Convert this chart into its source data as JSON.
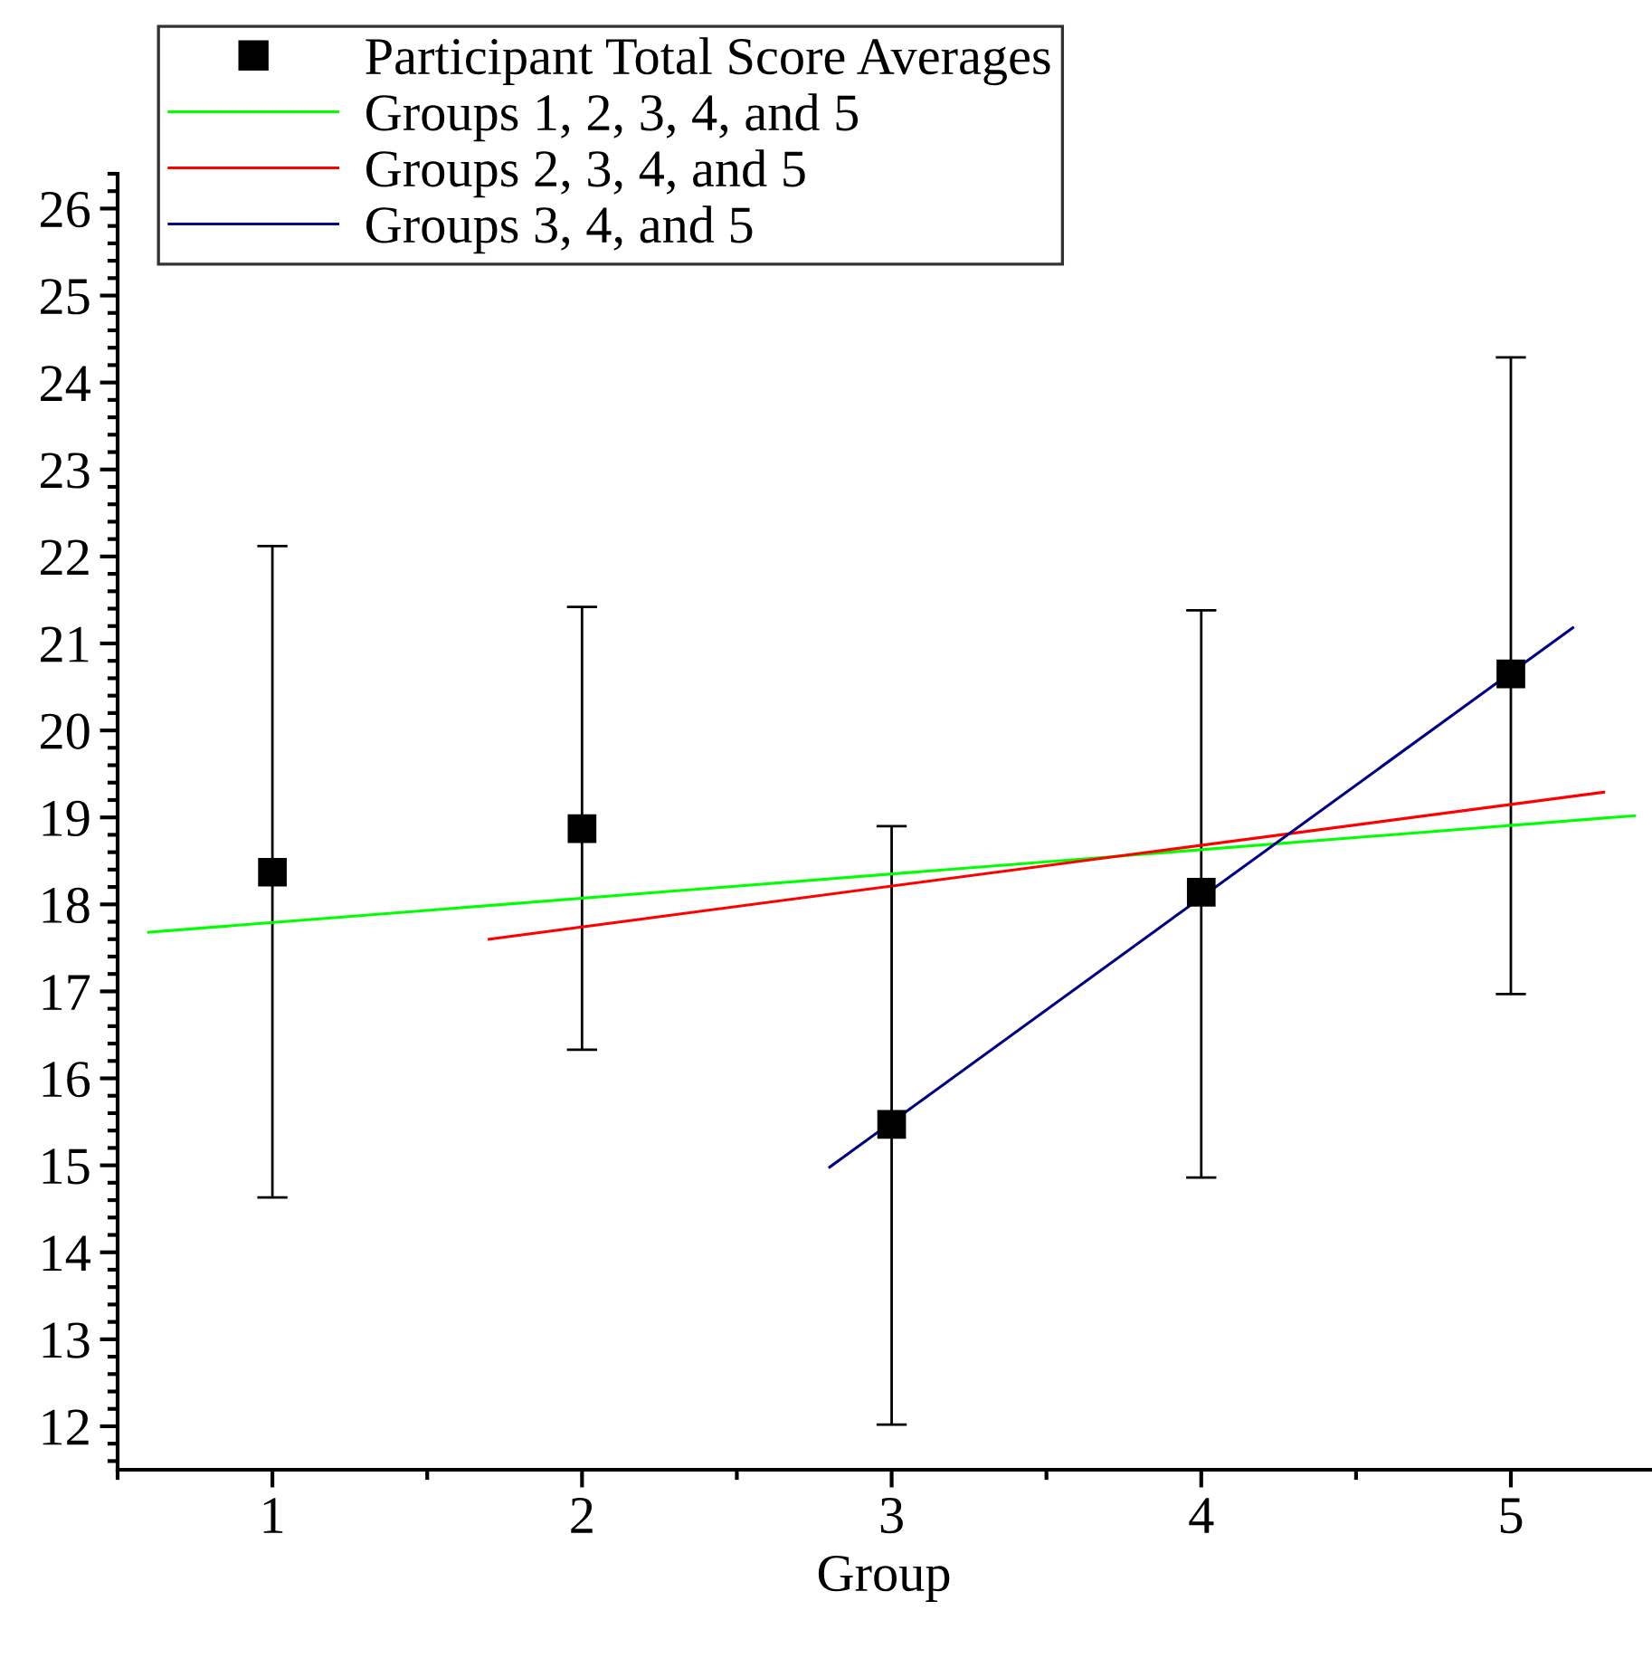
{
  "chart_data": {
    "type": "scatter",
    "xlabel": "Group",
    "xlim": [
      0.5,
      5.45
    ],
    "xticks": [
      1,
      2,
      3,
      4,
      5
    ],
    "ylim": [
      11.5,
      26.4
    ],
    "yticks": [
      12,
      13,
      14,
      15,
      16,
      17,
      18,
      19,
      20,
      21,
      22,
      23,
      24,
      25,
      26
    ],
    "grid": false,
    "legend": "top",
    "series": [
      {
        "name": "Participant Total Score Averages",
        "marker": "square",
        "color": "#000000",
        "x": [
          1,
          2,
          3,
          4,
          5
        ],
        "values": [
          18.37,
          18.87,
          15.47,
          18.14,
          20.65
        ],
        "errors": [
          [
            14.63,
            22.12
          ],
          [
            16.33,
            21.42
          ],
          [
            12.02,
            18.9
          ],
          [
            14.86,
            21.38
          ],
          [
            16.97,
            24.29
          ]
        ]
      },
      {
        "name": "Groups 1, 2, 3, 4, and 5",
        "type": "line",
        "color": "#00ff00",
        "x": [
          0.6,
          5.4
        ],
        "values": [
          17.68,
          19.02
        ]
      },
      {
        "name": "Groups 2, 3, 4, and 5",
        "type": "line",
        "color": "#ff0000",
        "x": [
          1.7,
          5.3
        ],
        "values": [
          17.6,
          19.29
        ]
      },
      {
        "name": "Groups 3, 4, and 5",
        "type": "line",
        "color": "#000080",
        "x": [
          2.8,
          5.2
        ],
        "values": [
          14.98,
          21.18
        ]
      }
    ]
  }
}
